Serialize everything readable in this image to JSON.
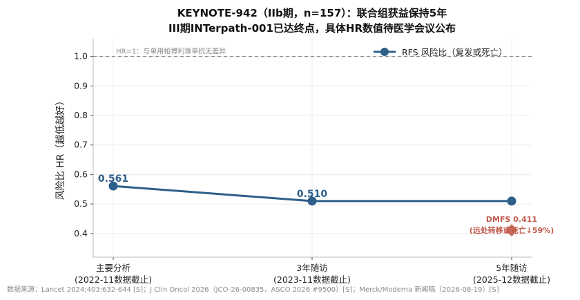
{
  "chart_data": {
    "type": "line",
    "title_line1": "KEYNOTE-942（IIb期，n=157）：联合组获益保持5年",
    "title_line2": "III期INTerpath-001已达终点，具体HR数值待医学会议公布",
    "ylabel": "风险比 HR（越低越好）",
    "ylim": [
      0.32,
      1.06
    ],
    "yticks": [
      "0.4",
      "0.5",
      "0.6",
      "0.7",
      "0.8",
      "0.9",
      "1.0"
    ],
    "grid": true,
    "legend_position": "top-right",
    "categories": [
      [
        "主要分析",
        "(2022-11数据截止)"
      ],
      [
        "3年随访",
        "(2023-11数据截止)"
      ],
      [
        "5年随访",
        "(2025-12数据截止)"
      ]
    ],
    "series": [
      {
        "name": "RFS 风险比（复发或死亡）",
        "values": [
          0.561,
          0.51,
          0.51
        ],
        "labels": [
          "0.561",
          "0.510",
          ""
        ]
      }
    ],
    "reference_line": {
      "value": 1.0,
      "label": "HR=1：与单用帕博利珠单抗无差异"
    },
    "dmfs_point": {
      "category_index": 2,
      "value": 0.411,
      "label_line1": "DMFS 0.411",
      "label_line2": "(远处转移或死亡↓59%)"
    },
    "source": "数据来源：Lancet 2024;403:632-644 [S]；J Clin Oncol 2026（JCO-26-00835，ASCO 2026 #9500）[S]；Merck/Moderna 新闻稿（2026-08-19）[S]"
  },
  "colors": {
    "series": "#2e5f8a",
    "dmfs": "#c0594a",
    "grid": "#ececec",
    "axis": "#bbbbbb",
    "reference": "#888888"
  }
}
